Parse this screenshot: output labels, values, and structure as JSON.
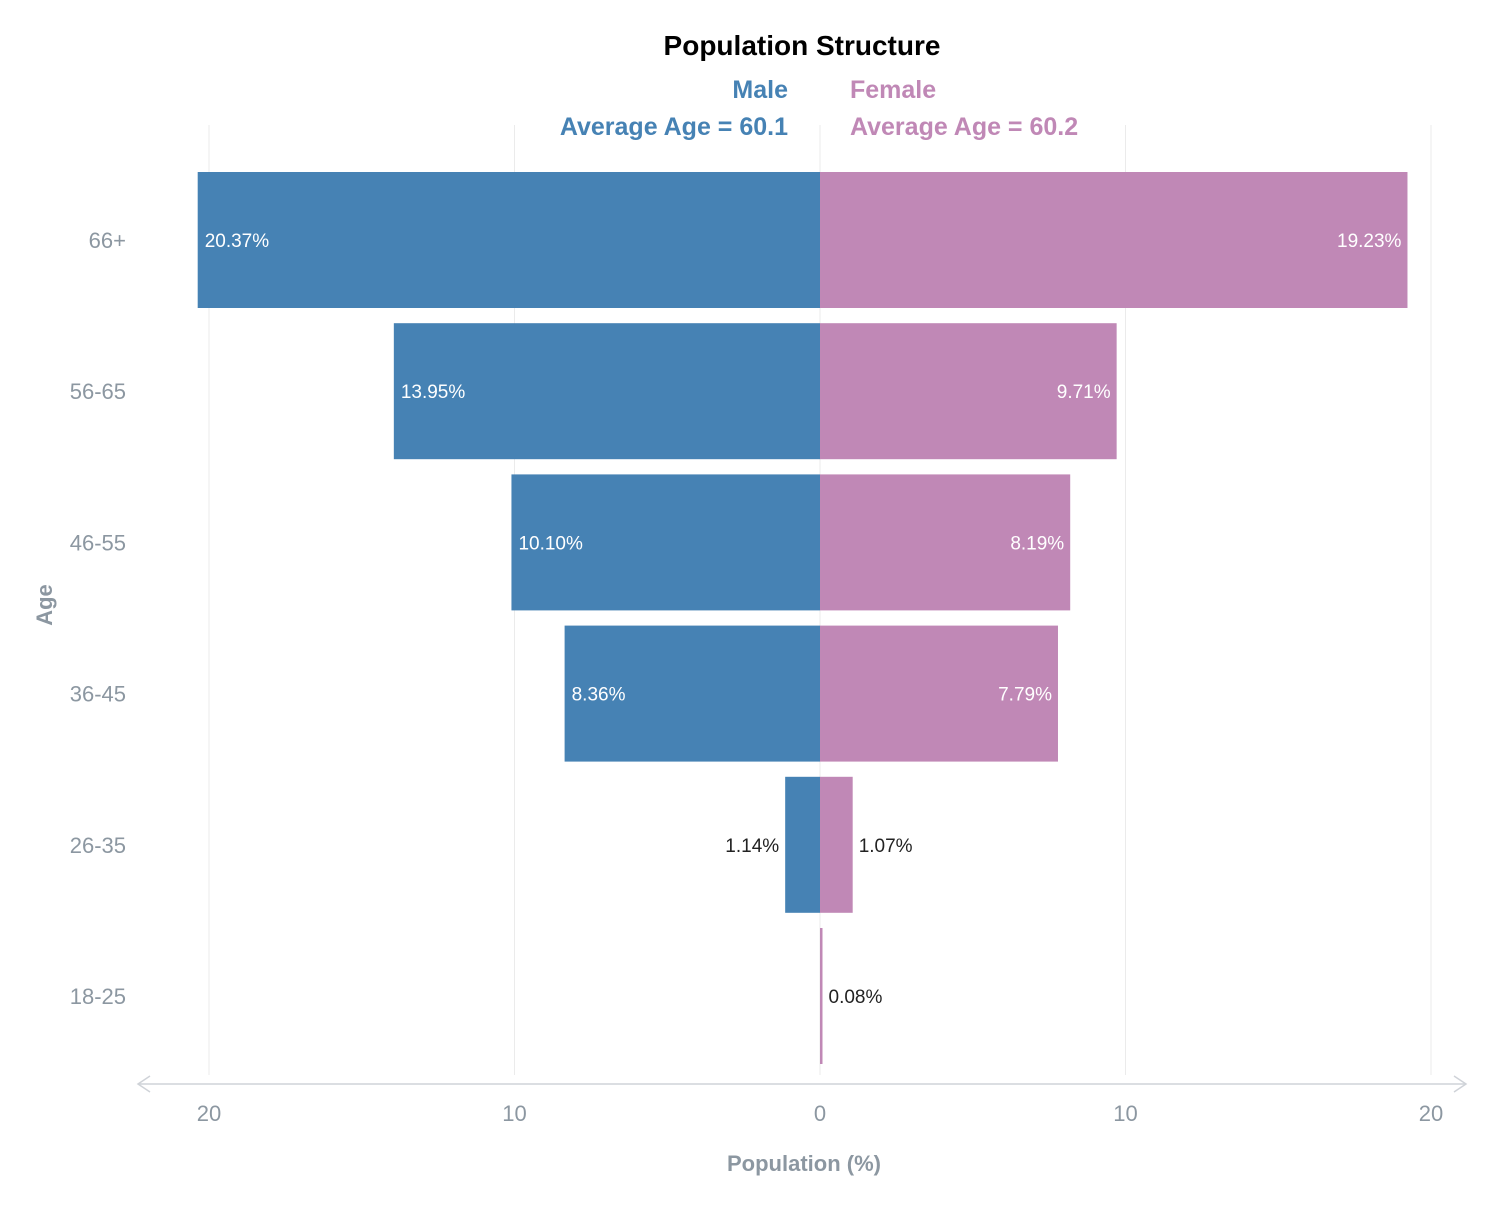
{
  "chart_data": {
    "type": "bar",
    "orientation": "horizontal",
    "title": "Population Structure",
    "categories": [
      "66+",
      "56-65",
      "46-55",
      "36-45",
      "26-35",
      "18-25"
    ],
    "series": [
      {
        "name": "Male",
        "subtitle": "Average Age = 60.1",
        "color": "#4682b4",
        "values": [
          20.37,
          13.95,
          10.1,
          8.36,
          1.14,
          0
        ],
        "labels": [
          "20.37%",
          "13.95%",
          "10.10%",
          "8.36%",
          "1.14%",
          ""
        ]
      },
      {
        "name": "Female",
        "subtitle": "Average Age = 60.2",
        "color": "#c088b6",
        "values": [
          19.23,
          9.71,
          8.19,
          7.79,
          1.07,
          0.08
        ],
        "labels": [
          "19.23%",
          "9.71%",
          "8.19%",
          "7.79%",
          "1.07%",
          "0.08%"
        ]
      }
    ],
    "xlabel": "Population (%)",
    "ylabel": "Age",
    "xticks": [
      "20",
      "10",
      "0",
      "10",
      "20"
    ],
    "xtick_values": [
      -20,
      -10,
      0,
      10,
      20
    ],
    "xlim": [
      -20,
      20
    ],
    "grid": "vertical",
    "colors": {
      "axis_text": "#8c97a1",
      "grid": "#ebebeb",
      "axis_line": "#cfd3d8",
      "title": "#000000"
    }
  }
}
